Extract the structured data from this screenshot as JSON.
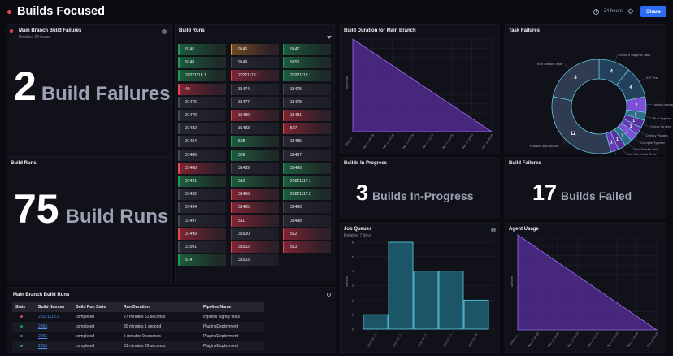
{
  "header": {
    "title": "Builds Focused",
    "time_range": "24 hours",
    "share_label": "Share"
  },
  "main_branch_failures": {
    "title": "Main Branch Build Failures",
    "subtitle": "Relative 24 hours",
    "value": "2",
    "label": "Build Failures"
  },
  "build_runs_stat": {
    "title": "Build Runs",
    "value": "75",
    "label": "Build Runs"
  },
  "build_runs_grid": {
    "title": "Build Runs",
    "columns": [
      [
        {
          "label": "9145",
          "status": "success"
        },
        {
          "label": "9148",
          "status": "success"
        },
        {
          "label": "20221118.1",
          "status": "success"
        },
        {
          "label": "40",
          "status": "failure"
        },
        {
          "label": "31476",
          "status": "neutral"
        },
        {
          "label": "31479",
          "status": "neutral"
        },
        {
          "label": "31482",
          "status": "neutral"
        },
        {
          "label": "31484",
          "status": "neutral"
        },
        {
          "label": "31486",
          "status": "neutral"
        },
        {
          "label": "31488",
          "status": "failure"
        },
        {
          "label": "31491",
          "status": "success"
        },
        {
          "label": "31492",
          "status": "neutral"
        },
        {
          "label": "31494",
          "status": "neutral"
        },
        {
          "label": "31497",
          "status": "neutral"
        },
        {
          "label": "31499",
          "status": "failure"
        },
        {
          "label": "31501",
          "status": "neutral"
        },
        {
          "label": "514",
          "status": "success"
        }
      ],
      [
        {
          "label": "9146",
          "status": "warning"
        },
        {
          "label": "9149",
          "status": "neutral"
        },
        {
          "label": "20221118.1",
          "status": "failure"
        },
        {
          "label": "31474",
          "status": "neutral"
        },
        {
          "label": "31477",
          "status": "neutral"
        },
        {
          "label": "31480",
          "status": "failure"
        },
        {
          "label": "31483",
          "status": "neutral"
        },
        {
          "label": "508",
          "status": "success"
        },
        {
          "label": "509",
          "status": "success"
        },
        {
          "label": "31489",
          "status": "neutral"
        },
        {
          "label": "510",
          "status": "success"
        },
        {
          "label": "31493",
          "status": "failure"
        },
        {
          "label": "31495",
          "status": "failure"
        },
        {
          "label": "511",
          "status": "failure"
        },
        {
          "label": "31500",
          "status": "neutral"
        },
        {
          "label": "31502",
          "status": "failure"
        },
        {
          "label": "31503",
          "status": "neutral"
        }
      ],
      [
        {
          "label": "9147",
          "status": "success"
        },
        {
          "label": "9150",
          "status": "success"
        },
        {
          "label": "20221118.1",
          "status": "success"
        },
        {
          "label": "31475",
          "status": "neutral"
        },
        {
          "label": "31478",
          "status": "neutral"
        },
        {
          "label": "31481",
          "status": "failure"
        },
        {
          "label": "507",
          "status": "failure"
        },
        {
          "label": "31485",
          "status": "neutral"
        },
        {
          "label": "31487",
          "status": "neutral"
        },
        {
          "label": "31490",
          "status": "success"
        },
        {
          "label": "20221117.1",
          "status": "success"
        },
        {
          "label": "20221117.2",
          "status": "success"
        },
        {
          "label": "31496",
          "status": "neutral"
        },
        {
          "label": "31498",
          "status": "neutral"
        },
        {
          "label": "512",
          "status": "failure"
        },
        {
          "label": "513",
          "status": "failure"
        }
      ]
    ]
  },
  "build_duration": {
    "title": "Build Duration for Main Branch",
    "ylabel": "seconds",
    "x_ticks": [
      "2022-11-...",
      "Nov 17 00:00",
      "Nov 17 04:00",
      "Nov 17 08:00",
      "Nov 17 12:00",
      "Nov 17 16:00",
      "Nov 17 20:00",
      "Nov 18 00:00"
    ]
  },
  "task_failures": {
    "title": "Task Failures",
    "slices": [
      {
        "label": "Check If Stage is Valid",
        "value": 4
      },
      {
        "label": "API Test",
        "value": 4
      },
      {
        "label": "Install packages",
        "value": 2
      },
      {
        "label": "Run Cypress te",
        "value": 1
      },
      {
        "label": "Check for files",
        "value": 1
      },
      {
        "label": "Deploy Plugins",
        "value": 1
      },
      {
        "label": "Compile Typescr",
        "value": 1
      },
      {
        "label": "Run Smoke Test",
        "value": 1
      },
      {
        "label": "Run Storybook Tests",
        "value": 1
      },
      {
        "label": "Publish Storybook",
        "value": 1
      },
      {
        "label": "Publish Test Results",
        "value": 12
      },
      {
        "label": "Run Smoke Tests",
        "value": 8
      }
    ]
  },
  "builds_in_progress": {
    "title": "Builds In Progress",
    "value": "3",
    "label": "Builds In-Progress"
  },
  "build_failures": {
    "title": "Build Failures",
    "value": "17",
    "label": "Builds Failed"
  },
  "job_queues": {
    "title": "Job Queues",
    "subtitle": "Relative 7 days",
    "ylabel": "number",
    "chart_data": {
      "type": "bar",
      "categories": [
        "2022-11-17...",
        "2022-11-17...",
        "2022-11-17...",
        "2022-11-17...",
        "2022-11-18..."
      ],
      "values": [
        1,
        6,
        4,
        4,
        2
      ],
      "ylim": [
        0,
        6
      ]
    }
  },
  "agent_usage": {
    "title": "Agent Usage",
    "ylabel": "number",
    "x_ticks": [
      "2022-11-...",
      "Nov 17 00:00",
      "Nov 17 04:00",
      "Nov 17 08:00",
      "Nov 17 12:00",
      "Nov 17 16:00",
      "Nov 17 20:00",
      "Nov 18 00:00"
    ]
  },
  "main_branch_runs": {
    "title": "Main Branch Build Runs",
    "columns": [
      "State",
      "Build Number",
      "Build Run State",
      "Run Duration",
      "Pipeline Name"
    ],
    "rows": [
      {
        "state": "failure",
        "number": "20221118.1",
        "run_state": "completed",
        "duration": "27 minutes 51 seconds",
        "pipeline": "cypress nightly tests"
      },
      {
        "state": "success",
        "number": "2066",
        "run_state": "completed",
        "duration": "30 minutes 1 second",
        "pipeline": "PluginsDeployment"
      },
      {
        "state": "success",
        "number": "2065",
        "run_state": "completed",
        "duration": "5 minutes 9 seconds",
        "pipeline": "PluginsDeployment"
      },
      {
        "state": "success",
        "number": "2055",
        "run_state": "completed",
        "duration": "31 minutes 20 seconds",
        "pipeline": "PluginsDeployment"
      }
    ]
  },
  "colors": {
    "success": "#1f9d55",
    "failure": "#e5484d",
    "warning": "#f29b38",
    "neutral": "#44475a",
    "accent": "#2d6df6",
    "purple": "#7d4fd6",
    "teal": "#37b6d2"
  }
}
